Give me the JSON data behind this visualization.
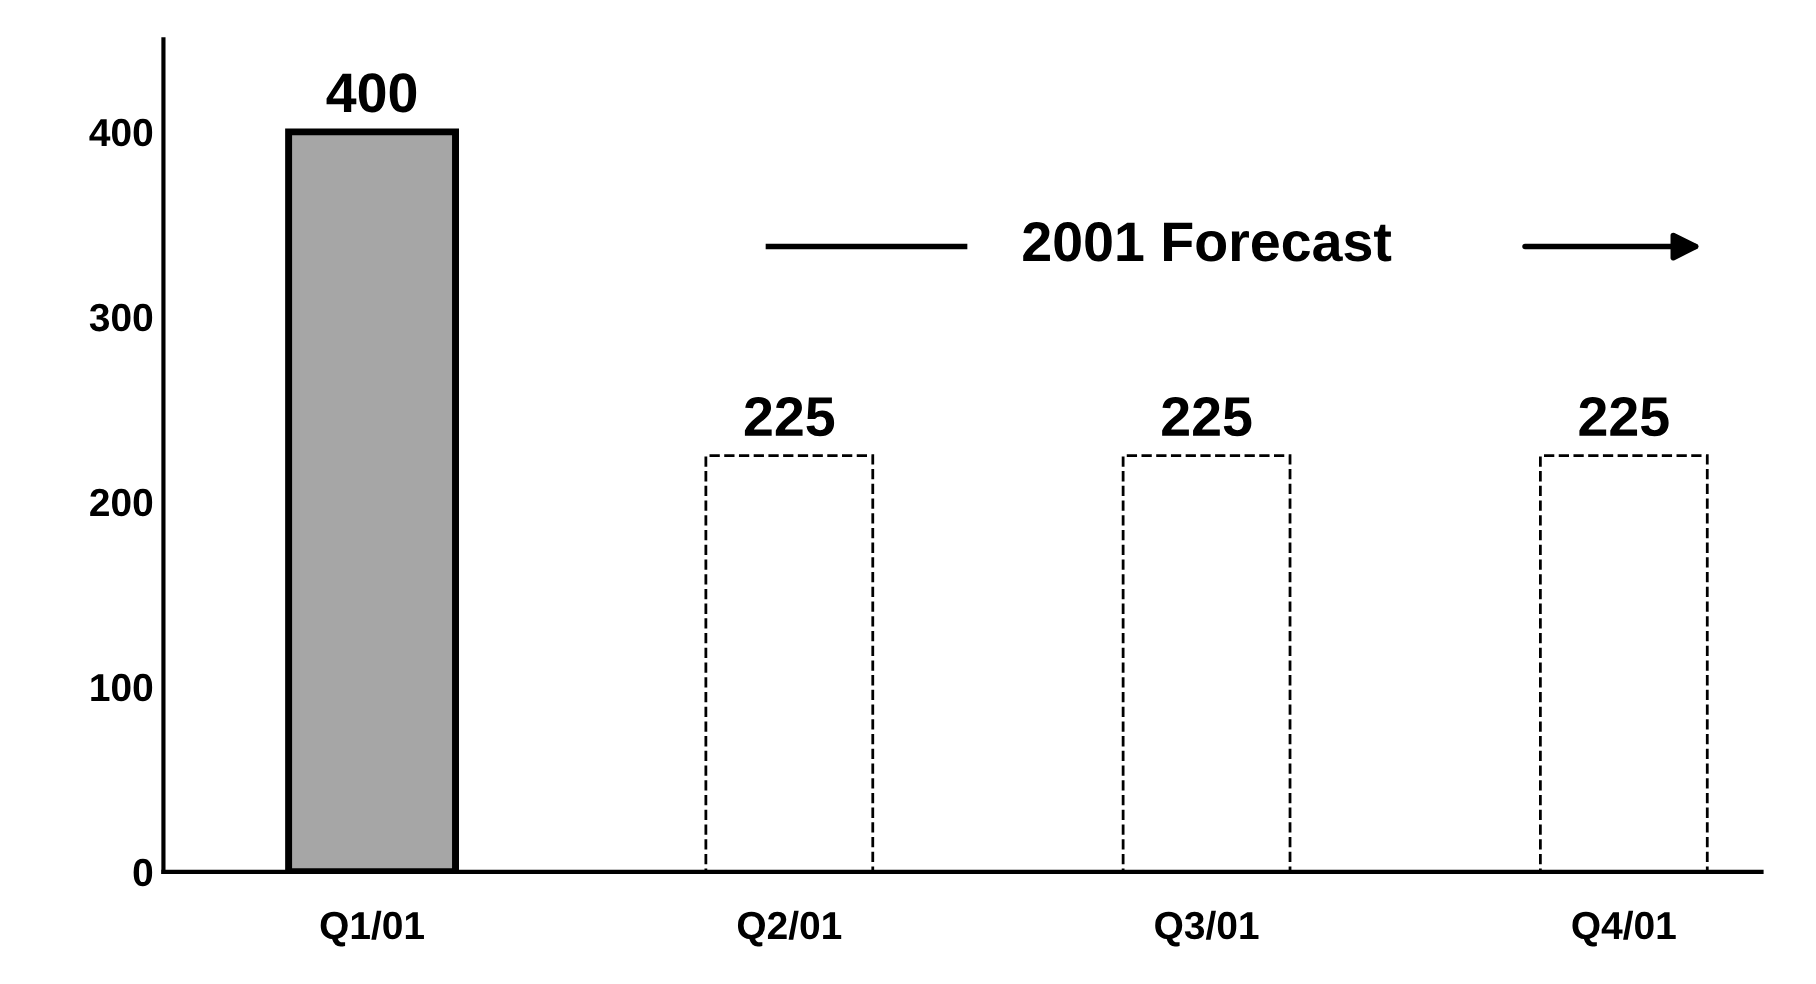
{
  "chart_data": {
    "type": "bar",
    "categories": [
      "Q1/01",
      "Q2/01",
      "Q3/01",
      "Q4/01"
    ],
    "series": [
      {
        "color": "#a6a6a6",
        "values": [
          400,
          null,
          null,
          null
        ],
        "line_style": "solid"
      },
      {
        "color": "#ffffff",
        "values": [
          null,
          225,
          225,
          225
        ],
        "line_style": "dashed"
      }
    ],
    "ylim": [
      0,
      450
    ],
    "yticks": [
      0,
      100,
      200,
      300,
      400
    ],
    "data_labels": true,
    "grid": false,
    "legend": false,
    "annotations": [
      "2001 Forecast"
    ]
  }
}
